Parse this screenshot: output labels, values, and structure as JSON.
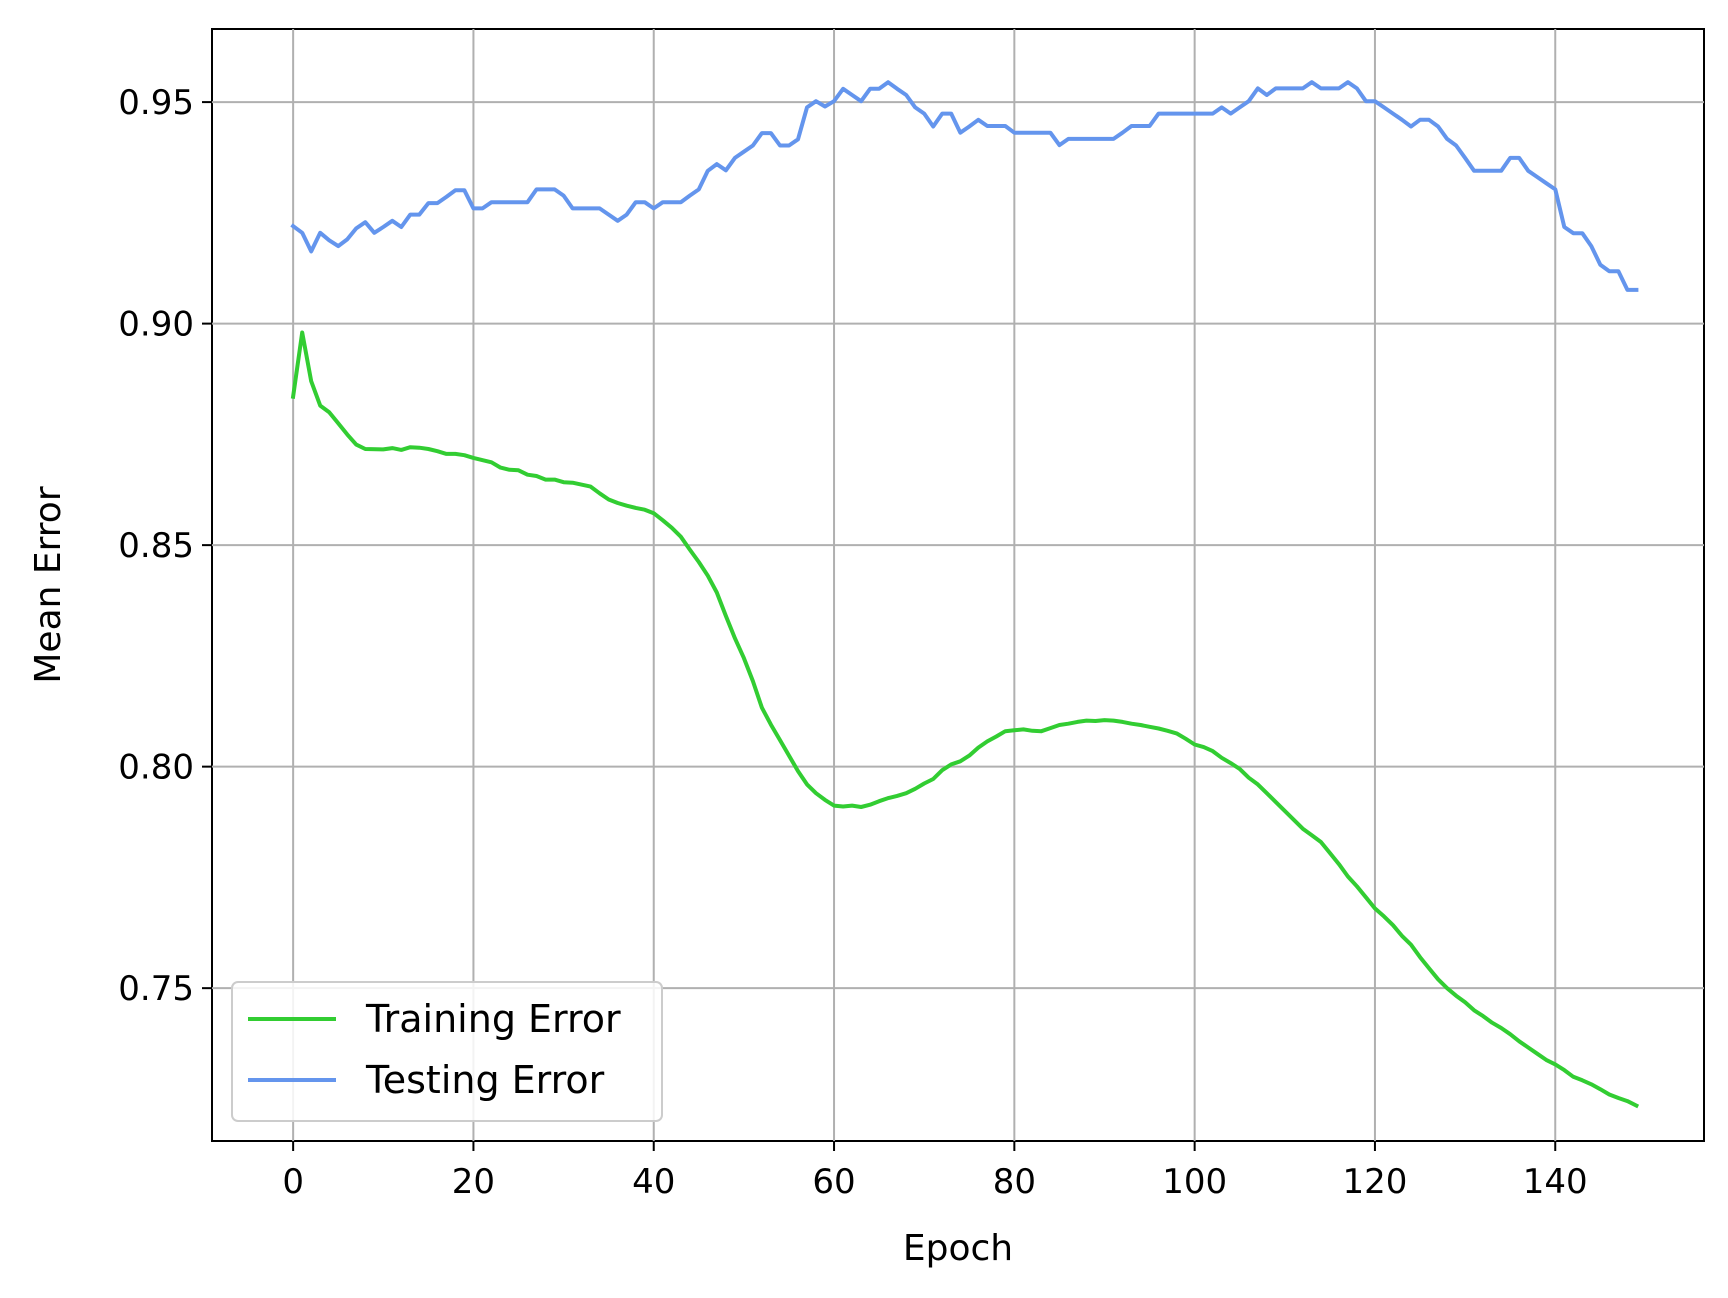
{
  "chart_data": {
    "type": "line",
    "xlabel": "Epoch",
    "ylabel": "Mean Error",
    "xlim": [
      -9,
      156.5
    ],
    "ylim": [
      0.7155,
      0.9665
    ],
    "xticks": [
      0,
      20,
      40,
      60,
      80,
      100,
      120,
      140
    ],
    "yticks": [
      0.75,
      0.8,
      0.85,
      0.9,
      0.95
    ],
    "x_tick_labels": [
      "0",
      "20",
      "40",
      "60",
      "80",
      "100",
      "120",
      "140"
    ],
    "y_tick_labels": [
      "0.75",
      "0.80",
      "0.85",
      "0.90",
      "0.95"
    ],
    "grid": true,
    "legend_position": "lower-left",
    "series": [
      {
        "name": "Training Error",
        "color": "#32cd32",
        "points": [
          [
            0,
            0.8835
          ],
          [
            1,
            0.898
          ],
          [
            2,
            0.887
          ],
          [
            3,
            0.8815
          ],
          [
            4,
            0.88
          ],
          [
            5,
            0.8775
          ],
          [
            6,
            0.875
          ],
          [
            7,
            0.8727
          ],
          [
            8,
            0.8717
          ],
          [
            10,
            0.8716
          ],
          [
            11,
            0.8719
          ],
          [
            12,
            0.8715
          ],
          [
            13,
            0.8721
          ],
          [
            14,
            0.872
          ],
          [
            15,
            0.8717
          ],
          [
            16,
            0.8712
          ],
          [
            17,
            0.8706
          ],
          [
            18,
            0.8706
          ],
          [
            19,
            0.8703
          ],
          [
            20,
            0.8697
          ],
          [
            22,
            0.8687
          ],
          [
            23,
            0.8675
          ],
          [
            24,
            0.867
          ],
          [
            25,
            0.8669
          ],
          [
            26,
            0.8659
          ],
          [
            27,
            0.8656
          ],
          [
            28,
            0.8648
          ],
          [
            29,
            0.8648
          ],
          [
            30,
            0.8642
          ],
          [
            31,
            0.8641
          ],
          [
            33,
            0.8632
          ],
          [
            34,
            0.8617
          ],
          [
            35,
            0.8603
          ],
          [
            36,
            0.8595
          ],
          [
            37,
            0.8589
          ],
          [
            38,
            0.8584
          ],
          [
            39,
            0.858
          ],
          [
            40,
            0.8572
          ],
          [
            41,
            0.8556
          ],
          [
            42,
            0.8539
          ],
          [
            43,
            0.8519
          ],
          [
            44,
            0.849
          ],
          [
            45,
            0.8462
          ],
          [
            46,
            0.8431
          ],
          [
            47,
            0.8393
          ],
          [
            48,
            0.834
          ],
          [
            49,
            0.829
          ],
          [
            50,
            0.8245
          ],
          [
            51,
            0.8193
          ],
          [
            52,
            0.8133
          ],
          [
            53,
            0.8095
          ],
          [
            54,
            0.806
          ],
          [
            55,
            0.8025
          ],
          [
            56,
            0.799
          ],
          [
            57,
            0.796
          ],
          [
            58,
            0.794
          ],
          [
            59,
            0.7925
          ],
          [
            60,
            0.7912
          ],
          [
            61,
            0.791
          ],
          [
            62,
            0.7912
          ],
          [
            63,
            0.7909
          ],
          [
            64,
            0.7914
          ],
          [
            65,
            0.7922
          ],
          [
            66,
            0.7929
          ],
          [
            67,
            0.7934
          ],
          [
            68,
            0.794
          ],
          [
            69,
            0.795
          ],
          [
            70,
            0.7962
          ],
          [
            71,
            0.7972
          ],
          [
            72,
            0.7992
          ],
          [
            73,
            0.8005
          ],
          [
            74,
            0.8012
          ],
          [
            75,
            0.8025
          ],
          [
            76,
            0.8043
          ],
          [
            77,
            0.8057
          ],
          [
            78,
            0.8068
          ],
          [
            79,
            0.808
          ],
          [
            80,
            0.8082
          ],
          [
            81,
            0.8084
          ],
          [
            82,
            0.8081
          ],
          [
            83,
            0.808
          ],
          [
            84,
            0.8087
          ],
          [
            85,
            0.8094
          ],
          [
            86,
            0.8097
          ],
          [
            87,
            0.8101
          ],
          [
            88,
            0.8104
          ],
          [
            89,
            0.8103
          ],
          [
            90,
            0.8105
          ],
          [
            91,
            0.8104
          ],
          [
            92,
            0.8101
          ],
          [
            93,
            0.8097
          ],
          [
            94,
            0.8094
          ],
          [
            95,
            0.809
          ],
          [
            96,
            0.8086
          ],
          [
            97,
            0.8081
          ],
          [
            98,
            0.8075
          ],
          [
            99,
            0.8063
          ],
          [
            100,
            0.805
          ],
          [
            101,
            0.8044
          ],
          [
            102,
            0.8035
          ],
          [
            103,
            0.802
          ],
          [
            104,
            0.8008
          ],
          [
            105,
            0.7995
          ],
          [
            106,
            0.7975
          ],
          [
            107,
            0.796
          ],
          [
            108,
            0.794
          ],
          [
            109,
            0.792
          ],
          [
            110,
            0.79
          ],
          [
            111,
            0.788
          ],
          [
            112,
            0.786
          ],
          [
            113,
            0.7845
          ],
          [
            114,
            0.783
          ],
          [
            115,
            0.7805
          ],
          [
            116,
            0.778
          ],
          [
            117,
            0.7752
          ],
          [
            118,
            0.773
          ],
          [
            119,
            0.7705
          ],
          [
            120,
            0.768
          ],
          [
            121,
            0.7662
          ],
          [
            122,
            0.7642
          ],
          [
            123,
            0.7618
          ],
          [
            124,
            0.7598
          ],
          [
            125,
            0.757
          ],
          [
            126,
            0.7545
          ],
          [
            127,
            0.752
          ],
          [
            128,
            0.75
          ],
          [
            129,
            0.7483
          ],
          [
            130,
            0.7468
          ],
          [
            131,
            0.745
          ],
          [
            132,
            0.7437
          ],
          [
            133,
            0.7422
          ],
          [
            134,
            0.741
          ],
          [
            135,
            0.7396
          ],
          [
            136,
            0.738
          ],
          [
            137,
            0.7366
          ],
          [
            138,
            0.7352
          ],
          [
            139,
            0.7338
          ],
          [
            140,
            0.7328
          ],
          [
            141,
            0.7315
          ],
          [
            142,
            0.73
          ],
          [
            143,
            0.7292
          ],
          [
            144,
            0.7283
          ],
          [
            145,
            0.7272
          ],
          [
            146,
            0.726
          ],
          [
            147,
            0.7252
          ],
          [
            148,
            0.7245
          ],
          [
            149,
            0.7235
          ]
        ]
      },
      {
        "name": "Testing Error",
        "color": "#6495ed",
        "points": [
          [
            0,
            0.922
          ],
          [
            1,
            0.9205
          ],
          [
            2,
            0.9163
          ],
          [
            3,
            0.9205
          ],
          [
            4,
            0.9188
          ],
          [
            5,
            0.9175
          ],
          [
            6,
            0.919
          ],
          [
            7,
            0.9215
          ],
          [
            8,
            0.9229
          ],
          [
            9,
            0.9205
          ],
          [
            10,
            0.9218
          ],
          [
            11,
            0.9232
          ],
          [
            12,
            0.9218
          ],
          [
            13,
            0.9246
          ],
          [
            14,
            0.9246
          ],
          [
            15,
            0.9272
          ],
          [
            16,
            0.9272
          ],
          [
            17,
            0.9286
          ],
          [
            18,
            0.9301
          ],
          [
            19,
            0.9301
          ],
          [
            20,
            0.926
          ],
          [
            21,
            0.926
          ],
          [
            22,
            0.9274
          ],
          [
            26,
            0.9274
          ],
          [
            27,
            0.9303
          ],
          [
            29,
            0.9303
          ],
          [
            30,
            0.9289
          ],
          [
            31,
            0.926
          ],
          [
            34,
            0.926
          ],
          [
            35,
            0.9246
          ],
          [
            36,
            0.9232
          ],
          [
            37,
            0.9246
          ],
          [
            38,
            0.9274
          ],
          [
            39,
            0.9274
          ],
          [
            40,
            0.926
          ],
          [
            41,
            0.9274
          ],
          [
            43,
            0.9274
          ],
          [
            44,
            0.9289
          ],
          [
            45,
            0.9303
          ],
          [
            46,
            0.9345
          ],
          [
            47,
            0.936
          ],
          [
            48,
            0.9346
          ],
          [
            49,
            0.9374
          ],
          [
            50,
            0.9388
          ],
          [
            51,
            0.9402
          ],
          [
            52,
            0.943
          ],
          [
            53,
            0.943
          ],
          [
            54,
            0.9402
          ],
          [
            55,
            0.9402
          ],
          [
            56,
            0.9416
          ],
          [
            57,
            0.9488
          ],
          [
            58,
            0.9502
          ],
          [
            59,
            0.949
          ],
          [
            60,
            0.9502
          ],
          [
            61,
            0.953
          ],
          [
            62,
            0.9516
          ],
          [
            63,
            0.9502
          ],
          [
            64,
            0.953
          ],
          [
            65,
            0.953
          ],
          [
            66,
            0.9545
          ],
          [
            67,
            0.953
          ],
          [
            68,
            0.9516
          ],
          [
            69,
            0.9488
          ],
          [
            70,
            0.9474
          ],
          [
            71,
            0.9445
          ],
          [
            72,
            0.9474
          ],
          [
            73,
            0.9474
          ],
          [
            74,
            0.9431
          ],
          [
            75,
            0.9445
          ],
          [
            76,
            0.946
          ],
          [
            77,
            0.9446
          ],
          [
            79,
            0.9446
          ],
          [
            80,
            0.9431
          ],
          [
            84,
            0.9431
          ],
          [
            85,
            0.9403
          ],
          [
            86,
            0.9417
          ],
          [
            90,
            0.9417
          ],
          [
            91,
            0.9417
          ],
          [
            92,
            0.9431
          ],
          [
            93,
            0.9446
          ],
          [
            95,
            0.9446
          ],
          [
            96,
            0.9474
          ],
          [
            102,
            0.9474
          ],
          [
            103,
            0.9488
          ],
          [
            104,
            0.9474
          ],
          [
            105,
            0.9488
          ],
          [
            106,
            0.9502
          ],
          [
            107,
            0.9531
          ],
          [
            108,
            0.9516
          ],
          [
            109,
            0.9531
          ],
          [
            112,
            0.9531
          ],
          [
            113,
            0.9545
          ],
          [
            114,
            0.9531
          ],
          [
            116,
            0.9531
          ],
          [
            117,
            0.9545
          ],
          [
            118,
            0.9531
          ],
          [
            119,
            0.9502
          ],
          [
            120,
            0.9502
          ],
          [
            121,
            0.9488
          ],
          [
            122,
            0.9474
          ],
          [
            123,
            0.946
          ],
          [
            124,
            0.9445
          ],
          [
            125,
            0.946
          ],
          [
            126,
            0.946
          ],
          [
            127,
            0.9445
          ],
          [
            128,
            0.9417
          ],
          [
            129,
            0.9402
          ],
          [
            130,
            0.9374
          ],
          [
            131,
            0.9345
          ],
          [
            134,
            0.9345
          ],
          [
            135,
            0.9374
          ],
          [
            136,
            0.9374
          ],
          [
            137,
            0.9345
          ],
          [
            138,
            0.9331
          ],
          [
            139,
            0.9317
          ],
          [
            140,
            0.9303
          ],
          [
            141,
            0.9218
          ],
          [
            142,
            0.9204
          ],
          [
            143,
            0.9204
          ],
          [
            144,
            0.9175
          ],
          [
            145,
            0.9133
          ],
          [
            146,
            0.9118
          ],
          [
            147,
            0.9118
          ],
          [
            148,
            0.9076
          ],
          [
            149,
            0.9076
          ]
        ]
      }
    ]
  }
}
